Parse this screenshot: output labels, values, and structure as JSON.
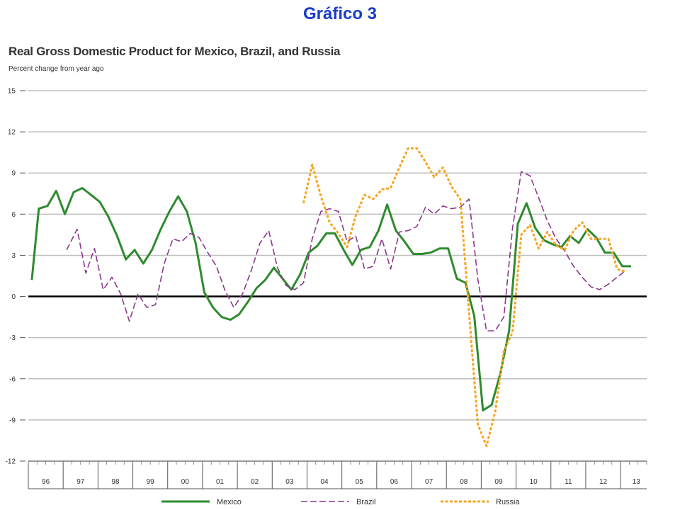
{
  "slide": {
    "title": "Gráfico 3"
  },
  "chart_data": {
    "type": "line",
    "title": "Real Gross Domestic Product for Mexico, Brazil, and Russia",
    "subtitle": "Percent change from year ago",
    "xlabel": "",
    "ylabel": "",
    "ylim": [
      -12,
      15
    ],
    "yticks": [
      15,
      12,
      9,
      6,
      3,
      0,
      -3,
      -6,
      -9,
      -12
    ],
    "xlim": [
      1996.0,
      2013.75
    ],
    "x_tick_labels": [
      "96",
      "97",
      "98",
      "99",
      "00",
      "01",
      "02",
      "03",
      "04",
      "05",
      "06",
      "07",
      "08",
      "09",
      "10",
      "11",
      "12",
      "13"
    ],
    "grid": true,
    "legend_position": "bottom",
    "colors": {
      "Mexico": "#2e8b2e",
      "Brazil": "#8b3a8b",
      "Russia": "#f5a623",
      "zero_line": "#000000",
      "grid": "#bfbfbf"
    },
    "series": [
      {
        "name": "Mexico",
        "style": "solid",
        "x": [
          1996.1,
          1996.3,
          1996.55,
          1996.8,
          1997.05,
          1997.3,
          1997.55,
          1997.8,
          1998.05,
          1998.3,
          1998.55,
          1998.8,
          1999.05,
          1999.3,
          1999.55,
          1999.8,
          2000.05,
          2000.3,
          2000.55,
          2000.8,
          2001.05,
          2001.3,
          2001.55,
          2001.8,
          2002.05,
          2002.3,
          2002.55,
          2002.8,
          2003.05,
          2003.3,
          2003.55,
          2003.8,
          2004.05,
          2004.3,
          2004.55,
          2004.8,
          2005.05,
          2005.3,
          2005.55,
          2005.8,
          2006.05,
          2006.3,
          2006.55,
          2006.8,
          2007.05,
          2007.3,
          2007.55,
          2007.8,
          2008.05,
          2008.3,
          2008.55,
          2008.8,
          2009.05,
          2009.3,
          2009.55,
          2009.8,
          2010.05,
          2010.3,
          2010.55,
          2010.8,
          2011.05,
          2011.3,
          2011.55,
          2011.8,
          2012.05,
          2012.3,
          2012.55,
          2012.8,
          2013.05,
          2013.3
        ],
        "values": [
          1.2,
          6.4,
          6.6,
          7.7,
          6.0,
          7.6,
          7.9,
          7.4,
          6.9,
          5.8,
          4.4,
          2.7,
          3.4,
          2.4,
          3.4,
          4.9,
          6.2,
          7.3,
          6.2,
          3.9,
          0.3,
          -0.8,
          -1.5,
          -1.7,
          -1.3,
          -0.4,
          0.6,
          1.2,
          2.1,
          1.3,
          0.5,
          1.6,
          3.2,
          3.7,
          4.6,
          4.6,
          3.4,
          2.3,
          3.4,
          3.6,
          4.8,
          6.7,
          4.8,
          4.0,
          3.1,
          3.1,
          3.2,
          3.5,
          3.5,
          1.3,
          1.0,
          -1.4,
          -8.3,
          -7.9,
          -5.6,
          -2.5,
          5.3,
          6.8,
          5.0,
          4.1,
          3.8,
          3.6,
          4.4,
          3.9,
          4.9,
          4.3,
          3.2,
          3.2,
          2.2,
          2.2
        ]
      },
      {
        "name": "Brazil",
        "style": "dashed",
        "x": [
          1997.1,
          1997.4,
          1997.65,
          1997.9,
          1998.15,
          1998.4,
          1998.65,
          1998.9,
          1999.15,
          1999.4,
          1999.65,
          1999.9,
          2000.15,
          2000.4,
          2000.65,
          2000.9,
          2001.15,
          2001.4,
          2001.65,
          2001.9,
          2002.15,
          2002.4,
          2002.65,
          2002.9,
          2003.15,
          2003.4,
          2003.65,
          2003.9,
          2004.15,
          2004.4,
          2004.65,
          2004.9,
          2005.15,
          2005.4,
          2005.65,
          2005.9,
          2006.15,
          2006.4,
          2006.65,
          2006.9,
          2007.15,
          2007.4,
          2007.65,
          2007.9,
          2008.15,
          2008.4,
          2008.65,
          2008.9,
          2009.15,
          2009.4,
          2009.65,
          2009.9,
          2010.15,
          2010.4,
          2010.65,
          2010.9,
          2011.15,
          2011.4,
          2011.65,
          2011.9,
          2012.15,
          2012.4,
          2012.65,
          2012.9,
          2013.15
        ],
        "values": [
          3.4,
          4.9,
          1.7,
          3.5,
          0.5,
          1.4,
          0.2,
          -1.8,
          0.2,
          -0.8,
          -0.6,
          2.4,
          4.2,
          4.0,
          4.6,
          4.3,
          3.2,
          2.2,
          0.4,
          -0.8,
          0.2,
          1.9,
          3.9,
          4.8,
          2.1,
          0.8,
          0.5,
          1.0,
          4.2,
          6.2,
          6.4,
          6.2,
          4.0,
          4.4,
          2.0,
          2.2,
          4.2,
          2.0,
          4.7,
          4.8,
          5.1,
          6.5,
          6.0,
          6.6,
          6.4,
          6.5,
          7.1,
          1.3,
          -2.5,
          -2.5,
          -1.5,
          5.0,
          9.1,
          8.8,
          7.2,
          5.5,
          4.2,
          3.3,
          2.2,
          1.4,
          0.7,
          0.5,
          0.9,
          1.4,
          1.9
        ]
      },
      {
        "name": "Russia",
        "style": "dotted",
        "x": [
          2003.9,
          2004.15,
          2004.4,
          2004.65,
          2004.9,
          2005.15,
          2005.4,
          2005.65,
          2005.9,
          2006.15,
          2006.4,
          2006.65,
          2006.9,
          2007.15,
          2007.4,
          2007.65,
          2007.9,
          2008.15,
          2008.4,
          2008.65,
          2008.9,
          2009.15,
          2009.4,
          2009.65,
          2009.9,
          2010.15,
          2010.4,
          2010.65,
          2010.9,
          2011.15,
          2011.4,
          2011.65,
          2011.9,
          2012.15,
          2012.4,
          2012.65,
          2012.9,
          2013.15
        ],
        "values": [
          6.8,
          9.6,
          7.3,
          5.4,
          4.6,
          3.6,
          5.9,
          7.4,
          7.1,
          7.8,
          7.9,
          9.4,
          10.8,
          10.8,
          9.8,
          8.7,
          9.4,
          8.0,
          7.1,
          -1.2,
          -9.3,
          -10.9,
          -8.4,
          -4.0,
          -2.6,
          4.5,
          5.2,
          3.5,
          4.7,
          3.7,
          3.4,
          4.8,
          5.4,
          4.2,
          4.2,
          4.2,
          2.0,
          1.8
        ]
      }
    ]
  }
}
